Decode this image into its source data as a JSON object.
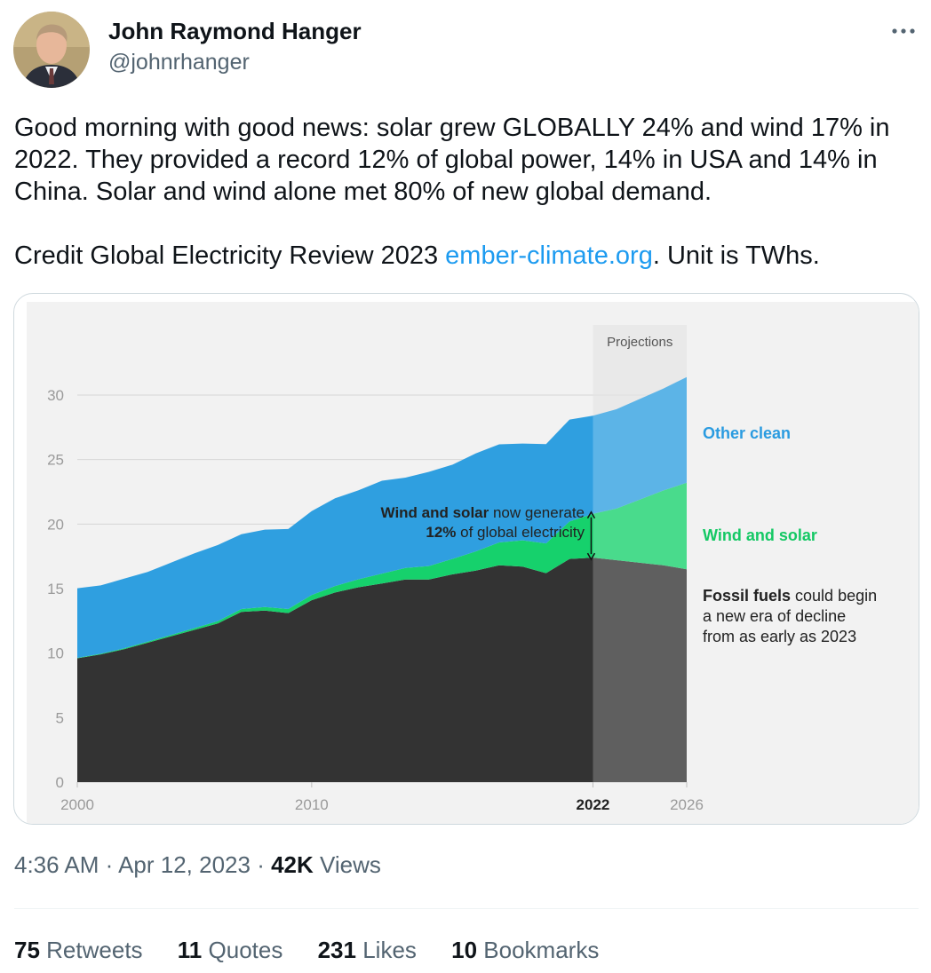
{
  "tweet": {
    "author_name": "John Raymond Hanger",
    "author_handle": "@johnrhanger",
    "more_icon": "more-horizontal-icon",
    "text_p1": "Good morning with good news: solar grew GLOBALLY 24% and wind 17% in 2022. They provided a record 12% of global power, 14% in USA and 14% in China. Solar and wind alone met 80% of new global demand.",
    "text_p2_before": "Credit Global Electricity Review 2023 ",
    "text_p2_link": "ember-climate.org",
    "text_p2_after": ". Unit is TWhs.",
    "link_color": "#1d9bf0",
    "time": "4:36 AM",
    "date": "Apr 12, 2023",
    "views_count": "42K",
    "views_label": "Views",
    "retweets_count": "75",
    "retweets_label": "Retweets",
    "quotes_count": "11",
    "quotes_label": "Quotes",
    "likes_count": "231",
    "likes_label": "Likes",
    "bookmarks_count": "10",
    "bookmarks_label": "Bookmarks"
  },
  "chart_data": {
    "type": "area",
    "stacked": true,
    "x": [
      2000,
      2001,
      2002,
      2003,
      2004,
      2005,
      2006,
      2007,
      2008,
      2009,
      2010,
      2011,
      2012,
      2013,
      2014,
      2015,
      2016,
      2017,
      2018,
      2019,
      2020,
      2021,
      2022,
      2023,
      2024,
      2025,
      2026
    ],
    "series": [
      {
        "name": "Fossil fuels",
        "color": "#333333",
        "values": [
          9.6,
          9.9,
          10.3,
          10.8,
          11.3,
          11.8,
          12.3,
          13.2,
          13.3,
          13.1,
          14.1,
          14.7,
          15.1,
          15.4,
          15.7,
          15.7,
          16.1,
          16.4,
          16.8,
          16.7,
          16.2,
          17.3,
          17.4,
          17.2,
          17.0,
          16.8,
          16.5
        ]
      },
      {
        "name": "Wind and solar",
        "color": "#16d16c",
        "values": [
          0.03,
          0.05,
          0.07,
          0.09,
          0.11,
          0.14,
          0.18,
          0.22,
          0.27,
          0.32,
          0.4,
          0.5,
          0.62,
          0.76,
          0.9,
          1.05,
          1.2,
          1.48,
          1.78,
          2.04,
          2.3,
          2.9,
          3.4,
          4.0,
          4.9,
          5.8,
          6.7
        ]
      },
      {
        "name": "Other clean",
        "color": "#2f9fe0",
        "values": [
          5.4,
          5.3,
          5.4,
          5.4,
          5.6,
          5.8,
          5.9,
          5.8,
          6.0,
          6.2,
          6.5,
          6.8,
          6.9,
          7.2,
          7.0,
          7.3,
          7.3,
          7.6,
          7.6,
          7.5,
          7.7,
          7.9,
          7.6,
          7.7,
          7.8,
          7.9,
          8.2
        ]
      }
    ],
    "projection_start": 2022,
    "projection_label": "Projections",
    "ylim": [
      0,
      30
    ],
    "xlim": [
      2000,
      2026
    ],
    "yticks": [
      0,
      5,
      10,
      15,
      20,
      25,
      30
    ],
    "xticks": [
      "2000",
      "2010",
      "2022",
      "2026"
    ],
    "grid": true,
    "annotation_line1_bold": "Wind and solar",
    "annotation_line1_rest": " now generate",
    "annotation_line2_bold": "12%",
    "annotation_line2_rest": " of global electricity",
    "label_other_clean": "Other clean",
    "label_wind_solar": "Wind and solar",
    "label_fossil_bold": "Fossil fuels",
    "label_fossil_rest": " could begin",
    "label_fossil_line2": "a new era of decline",
    "label_fossil_line3": "from as early as 2023",
    "colors": {
      "fossil": "#333333",
      "wind_solar": "#16d16c",
      "other_clean": "#2f9fe0",
      "other_clean_label": "#2a9be0",
      "wind_solar_label": "#14c864",
      "background": "#f2f2f2",
      "projection_band": "#e3e3e3"
    }
  }
}
